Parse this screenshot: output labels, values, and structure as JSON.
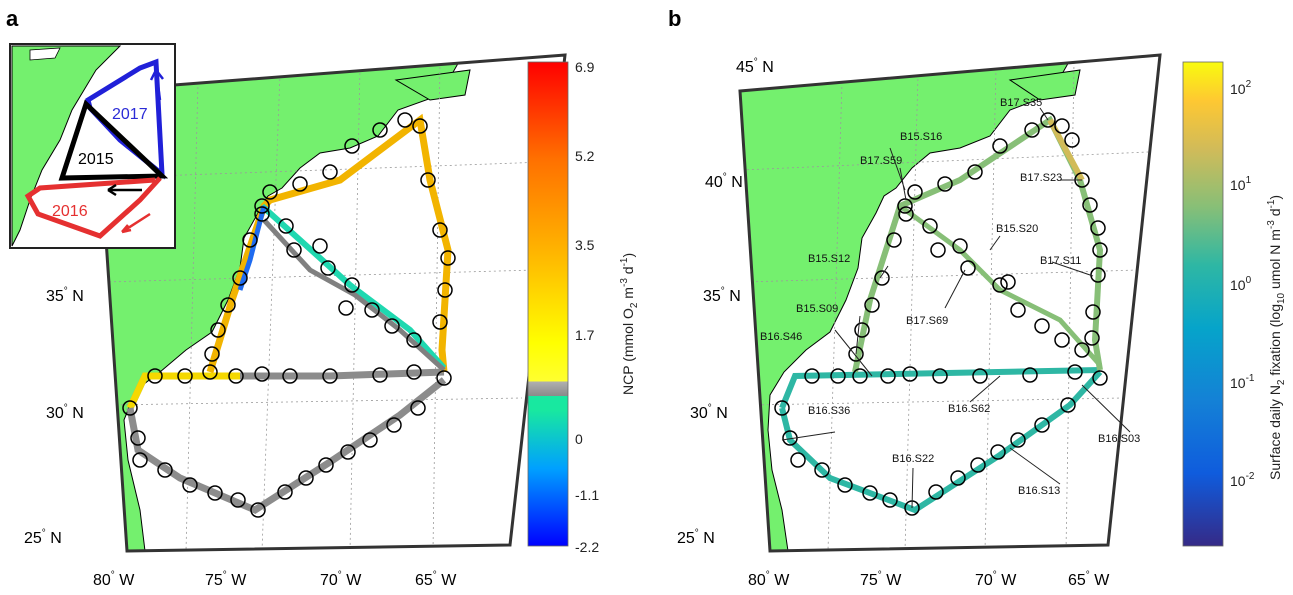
{
  "panels": {
    "a": {
      "letter": "a",
      "lat_labels": [
        "35",
        "30",
        "25"
      ],
      "lon_labels": [
        "80",
        "75",
        "70",
        "65"
      ],
      "lat_suffix": "N",
      "lon_suffix": "W",
      "colorbar": {
        "ticks": [
          "6.9",
          "5.2",
          "3.5",
          "1.7",
          "0",
          "-1.1",
          "-2.2"
        ],
        "label_parts": [
          "NCP (mmol O",
          "2",
          " m",
          "-3",
          " d",
          "-1",
          ")"
        ]
      },
      "inset": {
        "labels": [
          {
            "text": "2017",
            "color": "#2b2bd6"
          },
          {
            "text": "2015",
            "color": "#000000"
          },
          {
            "text": "2016",
            "color": "#e53030"
          }
        ]
      }
    },
    "b": {
      "letter": "b",
      "lat_labels": [
        "45",
        "40",
        "35",
        "30",
        "25"
      ],
      "lon_labels": [
        "80",
        "75",
        "70",
        "65"
      ],
      "lat_suffix": "N",
      "lon_suffix": "W",
      "colorbar": {
        "ticks": [
          "2",
          "1",
          "0",
          "-1",
          "-2"
        ],
        "tick_base": "10",
        "label_parts": [
          "Surface daily N",
          "2",
          " fixation (log",
          "10",
          " umol N m",
          "-3",
          " d",
          "-1",
          ")"
        ]
      },
      "stations": [
        "B17.S35",
        "B15.S16",
        "B17.S59",
        "B17.S23",
        "B15.S20",
        "B15.S12",
        "B17.S11",
        "B15.S09",
        "B17.S69",
        "B16.S46",
        "B16.S62",
        "B16.S36",
        "B16.S03",
        "B16.S22",
        "B16.S13"
      ]
    }
  },
  "colors": {
    "land": "#74f06e",
    "ocean": "#ffffff",
    "ncp_scale": [
      "#0000ff",
      "#00b4ff",
      "#18e8a0",
      "#808080",
      "#ffff00",
      "#ffb000",
      "#ff6000",
      "#ff0000"
    ],
    "n2_scale": [
      "#352a87",
      "#0f5cdd",
      "#1481d6",
      "#06a4ca",
      "#2eb7a4",
      "#87bf77",
      "#d1bb59",
      "#fec832",
      "#f9fb0e"
    ]
  }
}
